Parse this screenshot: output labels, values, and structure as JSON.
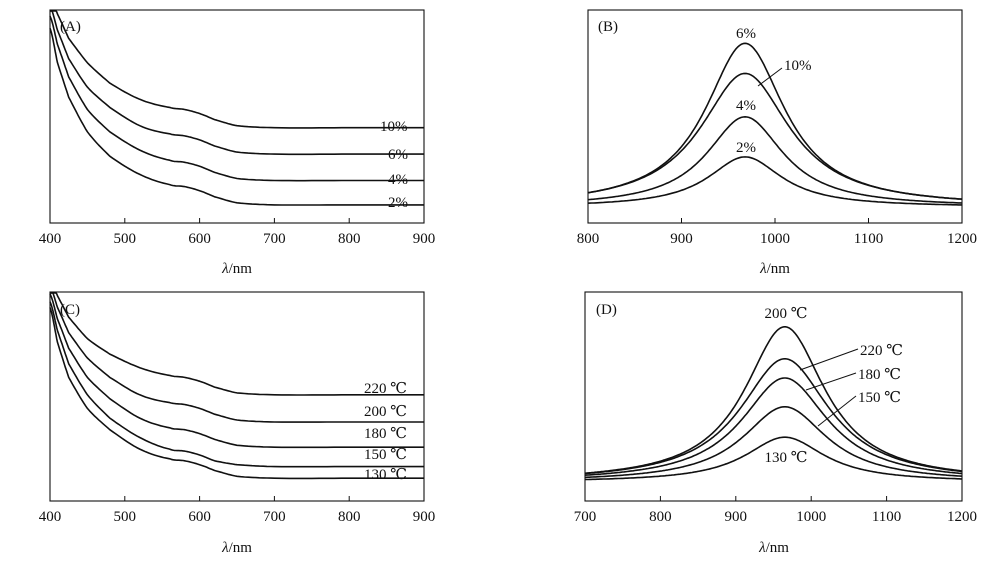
{
  "chart_data": [
    {
      "panel": "(A)",
      "type": "line",
      "xlabel_italic": "λ",
      "xlabel_unit": "/nm",
      "xlim": [
        400,
        900
      ],
      "ylim": [
        0,
        1
      ],
      "xticks": [
        "400",
        "500",
        "600",
        "700",
        "800",
        "900"
      ],
      "series": [
        {
          "name": "10%",
          "x": [
            400,
            410,
            425,
            450,
            480,
            520,
            560,
            580,
            600,
            620,
            650,
            700,
            800,
            900
          ],
          "y": [
            1.08,
            0.98,
            0.86,
            0.74,
            0.64,
            0.56,
            0.52,
            0.51,
            0.49,
            0.46,
            0.43,
            0.42,
            0.42,
            0.42
          ]
        },
        {
          "name": "6%",
          "x": [
            400,
            410,
            425,
            450,
            480,
            520,
            560,
            580,
            600,
            620,
            650,
            700,
            800,
            900
          ],
          "y": [
            1.02,
            0.9,
            0.76,
            0.62,
            0.52,
            0.43,
            0.39,
            0.38,
            0.36,
            0.33,
            0.3,
            0.29,
            0.29,
            0.29
          ]
        },
        {
          "name": "4%",
          "x": [
            400,
            410,
            425,
            450,
            480,
            520,
            560,
            580,
            600,
            620,
            650,
            700,
            800,
            900
          ],
          "y": [
            0.97,
            0.83,
            0.67,
            0.51,
            0.4,
            0.31,
            0.26,
            0.25,
            0.23,
            0.2,
            0.17,
            0.16,
            0.16,
            0.16
          ]
        },
        {
          "name": "2%",
          "x": [
            400,
            410,
            425,
            450,
            480,
            520,
            560,
            580,
            600,
            620,
            650,
            700,
            800,
            900
          ],
          "y": [
            0.91,
            0.74,
            0.57,
            0.4,
            0.28,
            0.19,
            0.14,
            0.13,
            0.11,
            0.08,
            0.05,
            0.04,
            0.04,
            0.04
          ]
        }
      ]
    },
    {
      "panel": "(B)",
      "type": "line",
      "xlabel_italic": "λ",
      "xlabel_unit": "/nm",
      "xlim": [
        800,
        1200
      ],
      "ylim": [
        0,
        1
      ],
      "xticks": [
        "800",
        "900",
        "1000",
        "1100",
        "1200"
      ],
      "peak_x": 968,
      "series": [
        {
          "name": "6%",
          "peak": 0.98,
          "width": 52
        },
        {
          "name": "10%",
          "peak": 0.8,
          "width": 58
        },
        {
          "name": "4%",
          "peak": 0.54,
          "width": 50
        },
        {
          "name": "2%",
          "peak": 0.3,
          "width": 48
        }
      ]
    },
    {
      "panel": "(C)",
      "type": "line",
      "xlabel_italic": "λ",
      "xlabel_unit": "/nm",
      "xlim": [
        400,
        900
      ],
      "ylim": [
        0,
        1
      ],
      "xticks": [
        "400",
        "500",
        "600",
        "700",
        "800",
        "900"
      ],
      "series": [
        {
          "name": "220 ℃",
          "x": [
            400,
            410,
            425,
            450,
            480,
            520,
            560,
            580,
            600,
            620,
            650,
            700,
            800,
            900
          ],
          "y": [
            1.08,
            0.98,
            0.87,
            0.76,
            0.68,
            0.61,
            0.57,
            0.56,
            0.54,
            0.51,
            0.48,
            0.47,
            0.47,
            0.47
          ]
        },
        {
          "name": "200 ℃",
          "x": [
            400,
            410,
            425,
            450,
            480,
            520,
            560,
            580,
            600,
            620,
            650,
            700,
            800,
            900
          ],
          "y": [
            1.03,
            0.92,
            0.79,
            0.66,
            0.56,
            0.47,
            0.43,
            0.42,
            0.4,
            0.37,
            0.34,
            0.33,
            0.33,
            0.33
          ]
        },
        {
          "name": "180 ℃",
          "x": [
            400,
            410,
            425,
            450,
            480,
            520,
            560,
            580,
            600,
            620,
            650,
            700,
            800,
            900
          ],
          "y": [
            0.99,
            0.86,
            0.71,
            0.56,
            0.45,
            0.35,
            0.3,
            0.29,
            0.27,
            0.24,
            0.21,
            0.2,
            0.2,
            0.2
          ]
        },
        {
          "name": "150 ℃",
          "x": [
            400,
            410,
            425,
            450,
            480,
            520,
            560,
            580,
            600,
            620,
            650,
            700,
            800,
            900
          ],
          "y": [
            0.95,
            0.8,
            0.63,
            0.47,
            0.35,
            0.25,
            0.19,
            0.18,
            0.16,
            0.13,
            0.11,
            0.1,
            0.1,
            0.1
          ]
        },
        {
          "name": "130 ℃",
          "x": [
            400,
            410,
            425,
            450,
            480,
            520,
            560,
            580,
            600,
            620,
            650,
            700,
            800,
            900
          ],
          "y": [
            0.92,
            0.74,
            0.56,
            0.4,
            0.29,
            0.19,
            0.14,
            0.13,
            0.11,
            0.08,
            0.05,
            0.04,
            0.04,
            0.04
          ]
        }
      ]
    },
    {
      "panel": "(D)",
      "type": "line",
      "xlabel_italic": "λ",
      "xlabel_unit": "/nm",
      "xlim": [
        700,
        1200
      ],
      "ylim": [
        0,
        1
      ],
      "xticks": [
        "700",
        "800",
        "900",
        "1000",
        "1100",
        "1200"
      ],
      "peak_x": 965,
      "series": [
        {
          "name": "200 ℃",
          "peak": 0.97,
          "width": 65
        },
        {
          "name": "220 ℃",
          "peak": 0.77,
          "width": 72
        },
        {
          "name": "180 ℃",
          "peak": 0.65,
          "width": 70
        },
        {
          "name": "150 ℃",
          "peak": 0.47,
          "width": 68
        },
        {
          "name": "130 ℃",
          "peak": 0.28,
          "width": 64
        }
      ]
    }
  ]
}
